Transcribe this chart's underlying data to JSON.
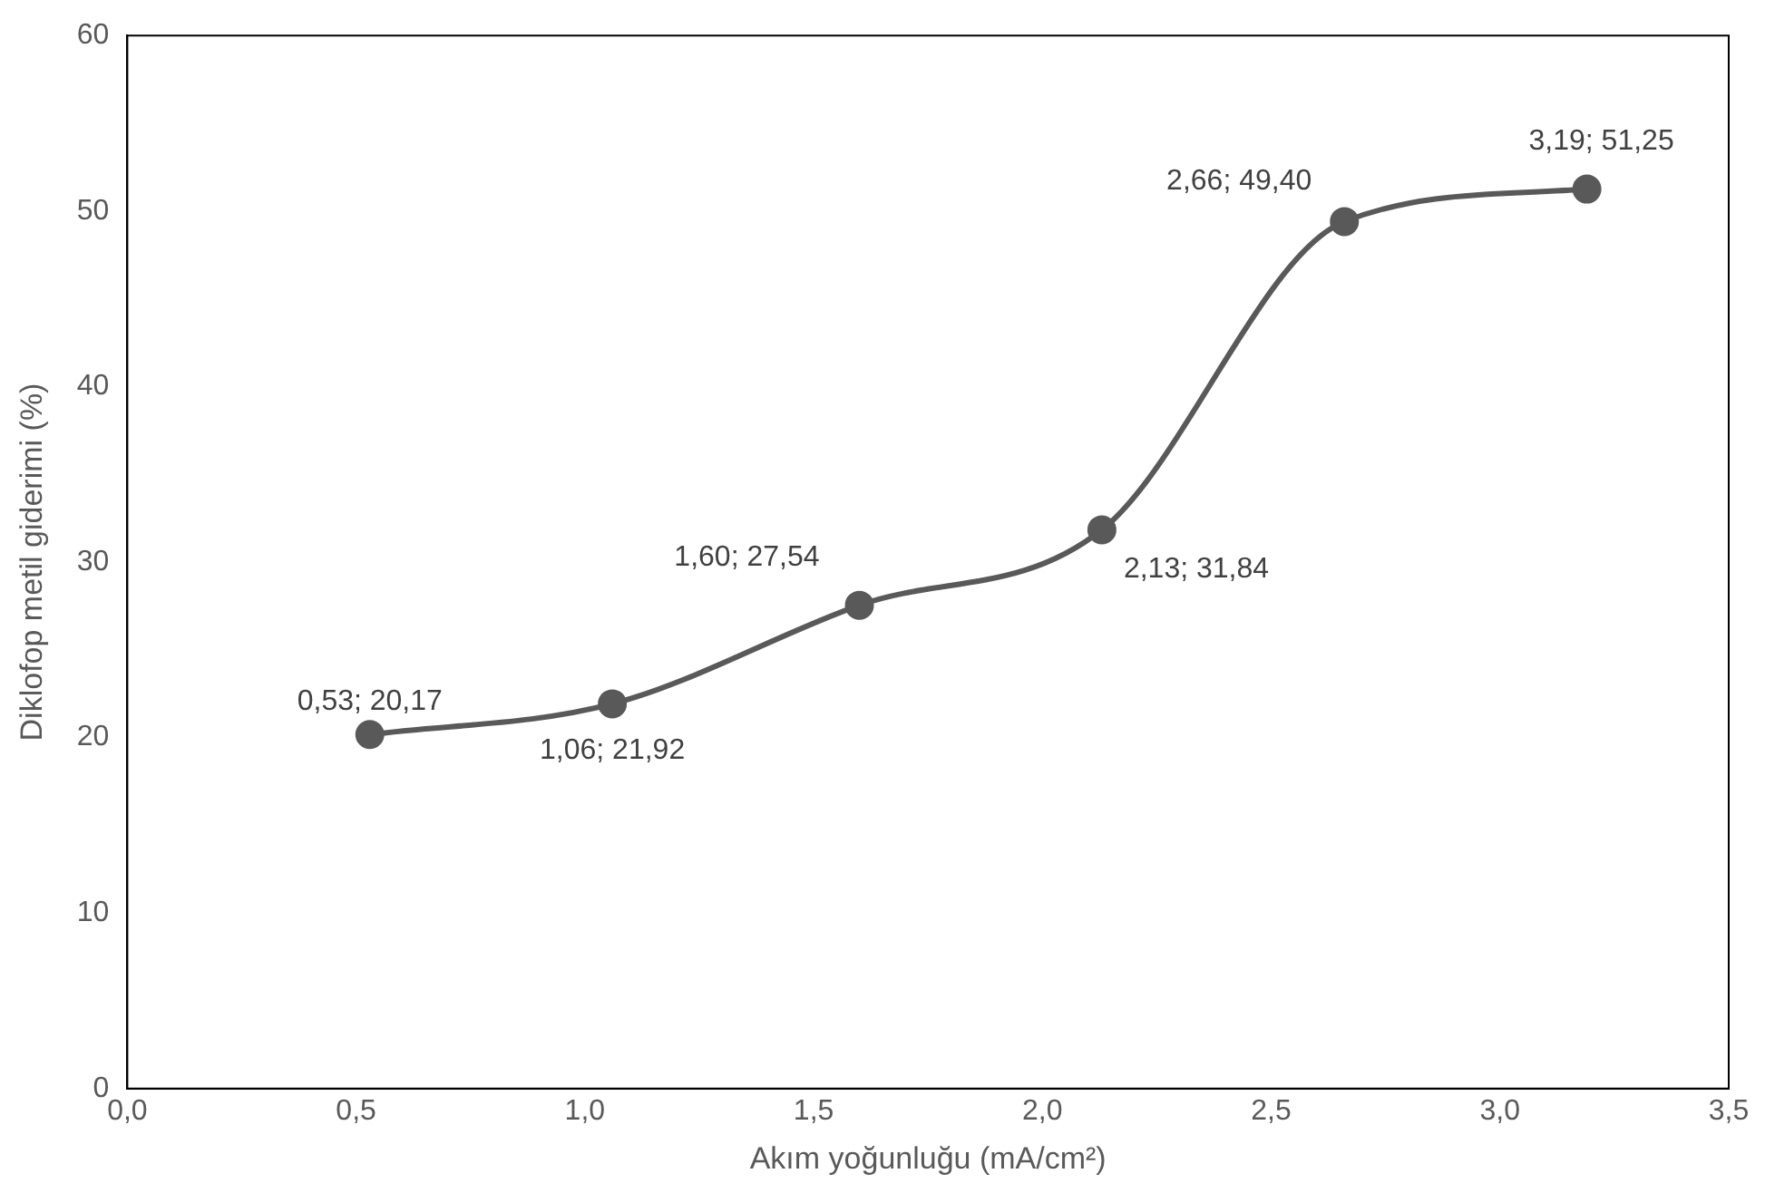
{
  "chart_data": {
    "type": "line",
    "xlabel": "Akım yoğunluğu (mA/cm²)",
    "ylabel": "Diklofop metil giderimi (%)",
    "x": [
      0.53,
      1.06,
      1.6,
      2.13,
      2.66,
      3.19
    ],
    "series": [
      {
        "color": "#595959",
        "values": [
          20.17,
          21.92,
          27.54,
          31.84,
          49.4,
          51.25
        ],
        "value_labels": [
          "0,53; 20,17",
          "1,06; 21,92",
          "1,60; 27,54",
          "2,13; 31,84",
          "2,66; 49,40",
          "3,19; 51,25"
        ]
      }
    ],
    "xlim": [
      0,
      3.5
    ],
    "xticks": [
      {
        "value": 0,
        "label": "0,0"
      },
      {
        "value": 0.5,
        "label": "0,5"
      },
      {
        "value": 1,
        "label": "1,0"
      },
      {
        "value": 1.5,
        "label": "1,5"
      },
      {
        "value": 2,
        "label": "2,0"
      },
      {
        "value": 2.5,
        "label": "2,5"
      },
      {
        "value": 3,
        "label": "3,0"
      },
      {
        "value": 3.5,
        "label": "3,5"
      }
    ],
    "ylim": [
      0,
      60
    ],
    "yticks": [
      0,
      10,
      20,
      30,
      40,
      50,
      60
    ],
    "grid": false,
    "legend": false,
    "marker": "circle",
    "line_style": "solid"
  }
}
